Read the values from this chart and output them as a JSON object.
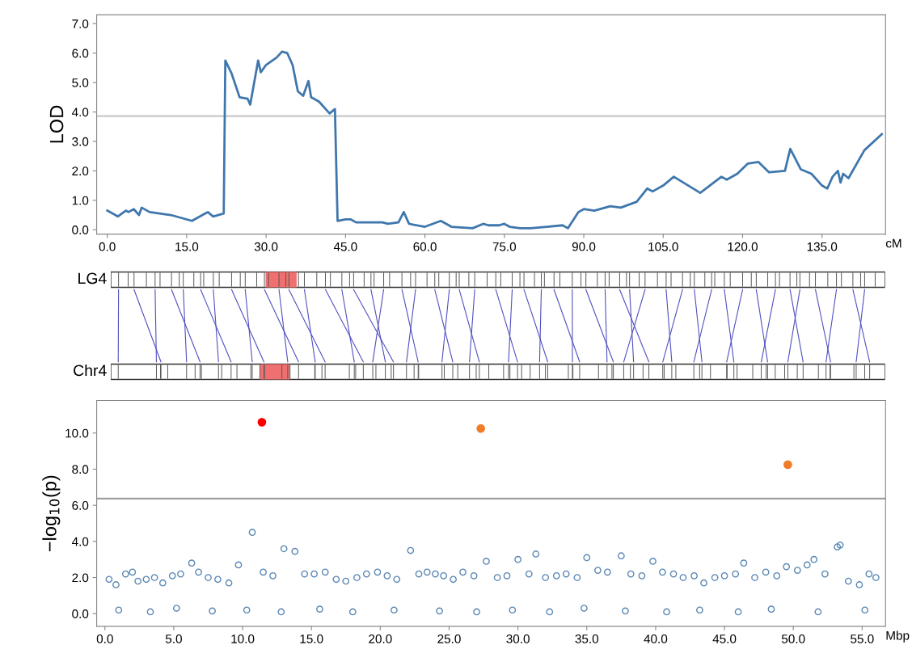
{
  "chart_data": [
    {
      "type": "line",
      "ylabel": "LOD",
      "xlabel": "cM",
      "x": [
        0,
        2,
        3.5,
        4,
        5,
        6,
        6.5,
        8,
        12,
        16,
        19,
        20,
        22,
        22.3,
        23.5,
        25,
        26.5,
        27,
        28.5,
        29,
        30,
        32,
        33,
        34,
        35,
        36,
        37,
        38,
        38.5,
        40,
        42,
        43,
        43.5,
        45,
        46,
        47,
        52,
        53,
        55,
        56,
        57,
        60,
        63,
        65,
        69,
        71,
        72,
        74,
        75,
        76,
        78,
        80,
        83,
        86,
        87,
        89,
        90,
        92,
        95,
        97,
        100,
        102,
        103,
        105,
        107,
        112,
        116,
        117,
        119,
        121,
        123,
        125,
        128,
        129,
        131,
        133,
        135,
        136,
        137,
        138,
        138.5,
        139,
        140,
        143,
        146.3
      ],
      "series": [
        {
          "color": "#3f77ad",
          "values": [
            0.65,
            0.45,
            0.65,
            0.6,
            0.7,
            0.5,
            0.75,
            0.6,
            0.5,
            0.3,
            0.6,
            0.45,
            0.55,
            5.75,
            5.3,
            4.5,
            4.45,
            4.25,
            5.75,
            5.35,
            5.6,
            5.85,
            6.05,
            6.0,
            5.6,
            4.7,
            4.55,
            5.05,
            4.5,
            4.35,
            3.95,
            4.1,
            0.3,
            0.35,
            0.35,
            0.25,
            0.25,
            0.2,
            0.25,
            0.6,
            0.2,
            0.1,
            0.3,
            0.1,
            0.05,
            0.2,
            0.15,
            0.15,
            0.2,
            0.1,
            0.05,
            0.05,
            0.1,
            0.15,
            0.05,
            0.6,
            0.7,
            0.65,
            0.8,
            0.75,
            0.95,
            1.4,
            1.3,
            1.5,
            1.8,
            1.25,
            1.8,
            1.7,
            1.9,
            2.25,
            2.3,
            1.95,
            2.0,
            2.75,
            2.05,
            1.9,
            1.5,
            1.4,
            1.8,
            2.0,
            1.6,
            1.9,
            1.75,
            2.7,
            3.25
          ]
        }
      ],
      "xlim": [
        -2,
        147
      ],
      "ylim": [
        -0.15,
        7.3
      ],
      "xticks": [
        {
          "value": 0,
          "label": "0.0"
        },
        {
          "value": 15,
          "label": "15.0"
        },
        {
          "value": 30,
          "label": "30.0"
        },
        {
          "value": 45,
          "label": "45.0"
        },
        {
          "value": 60,
          "label": "60.0"
        },
        {
          "value": 75,
          "label": "75.0"
        },
        {
          "value": 90,
          "label": "90.0"
        },
        {
          "value": 105,
          "label": "105.0"
        },
        {
          "value": 120,
          "label": "120.0"
        },
        {
          "value": 135,
          "label": "135.0"
        }
      ],
      "yticks": [
        {
          "value": 0,
          "label": "0.0"
        },
        {
          "value": 1,
          "label": "1.0"
        },
        {
          "value": 2,
          "label": "2.0"
        },
        {
          "value": 3,
          "label": "3.0"
        },
        {
          "value": 4,
          "label": "4.0"
        },
        {
          "value": 5,
          "label": "5.0"
        },
        {
          "value": 6,
          "label": "6.0"
        },
        {
          "value": 7,
          "label": "7.0"
        }
      ],
      "ref_lines": [
        {
          "axis": "y",
          "value": 3.86,
          "color": "#c8c8c8"
        }
      ],
      "grid": false,
      "legend": false,
      "marker": "none",
      "line_style": "solid"
    },
    {
      "type": "other",
      "annotations": [
        "LG4",
        "Chr4"
      ]
    },
    {
      "type": "scatter",
      "ylabel": "−log$_{10}$(p)",
      "xlabel": "Mbp",
      "series": [
        {
          "color": "#5a87b5",
          "x": [
            0.3,
            0.8,
            1.5,
            2.0,
            2.4,
            3.0,
            3.6,
            4.2,
            4.9,
            5.5,
            6.3,
            6.8,
            7.5,
            8.2,
            9.0,
            9.7,
            10.7,
            11.5,
            12.2,
            13.0,
            13.8,
            14.5,
            15.2,
            16.0,
            16.8,
            17.5,
            18.3,
            19.0,
            19.8,
            20.5,
            21.2,
            22.2,
            22.8,
            23.4,
            24.0,
            24.6,
            25.3,
            26.0,
            26.8,
            27.7,
            28.5,
            29.2,
            30.0,
            30.8,
            31.3,
            32.0,
            32.8,
            33.5,
            34.3,
            35.0,
            35.8,
            36.5,
            37.5,
            38.2,
            39.0,
            39.8,
            40.5,
            41.3,
            42.0,
            42.8,
            43.5,
            44.3,
            45.0,
            45.8,
            46.4,
            47.2,
            48.0,
            48.8,
            49.5,
            50.3,
            51.0,
            51.5,
            52.3,
            53.2,
            53.4,
            54.0,
            54.8,
            55.5,
            56.0,
            1.0,
            3.3,
            5.2,
            7.8,
            10.3,
            12.8,
            15.6,
            18.0,
            21.0,
            24.3,
            27.0,
            29.6,
            32.3,
            34.8,
            37.8,
            40.8,
            43.2,
            46.0,
            48.4,
            51.8,
            55.2
          ],
          "values": [
            1.9,
            1.6,
            2.2,
            2.3,
            1.8,
            1.9,
            2.0,
            1.7,
            2.1,
            2.2,
            2.8,
            2.3,
            2.0,
            1.9,
            1.7,
            2.7,
            4.5,
            2.3,
            2.1,
            3.6,
            3.45,
            2.2,
            2.2,
            2.3,
            1.9,
            1.8,
            2.0,
            2.2,
            2.3,
            2.1,
            1.9,
            3.5,
            2.2,
            2.3,
            2.2,
            2.1,
            1.9,
            2.3,
            2.1,
            2.9,
            2.0,
            2.1,
            3.0,
            2.2,
            3.3,
            2.0,
            2.1,
            2.2,
            2.0,
            3.1,
            2.4,
            2.3,
            3.2,
            2.2,
            2.1,
            2.9,
            2.3,
            2.2,
            2.0,
            2.1,
            1.7,
            2.0,
            2.1,
            2.2,
            2.8,
            2.0,
            2.3,
            2.1,
            2.6,
            2.4,
            2.7,
            3.0,
            2.2,
            3.7,
            3.8,
            1.8,
            1.6,
            2.2,
            2.0,
            0.2,
            0.1,
            0.3,
            0.15,
            0.2,
            0.1,
            0.25,
            0.1,
            0.2,
            0.15,
            0.1,
            0.2,
            0.1,
            0.3,
            0.15,
            0.1,
            0.2,
            0.1,
            0.25,
            0.1,
            0.2
          ]
        },
        {
          "color": "#ff0000",
          "x": [
            11.4
          ],
          "values": [
            10.6
          ]
        },
        {
          "color": "#f07d28",
          "x": [
            27.3,
            49.6
          ],
          "values": [
            10.25,
            8.25
          ]
        }
      ],
      "xlim": [
        -0.6,
        56.7
      ],
      "ylim": [
        -0.7,
        11.8
      ],
      "xticks": [
        {
          "value": 0,
          "label": "0.0"
        },
        {
          "value": 5,
          "label": "5.0"
        },
        {
          "value": 10,
          "label": "10.0"
        },
        {
          "value": 15,
          "label": "15.0"
        },
        {
          "value": 20,
          "label": "20.0"
        },
        {
          "value": 25,
          "label": "25.0"
        },
        {
          "value": 30,
          "label": "30.0"
        },
        {
          "value": 35,
          "label": "35.0"
        },
        {
          "value": 40,
          "label": "40.0"
        },
        {
          "value": 45,
          "label": "45.0"
        },
        {
          "value": 50,
          "label": "50.0"
        },
        {
          "value": 55,
          "label": "55.0"
        }
      ],
      "yticks": [
        {
          "value": 0,
          "label": "0.0"
        },
        {
          "value": 2,
          "label": "2.0"
        },
        {
          "value": 4,
          "label": "4.0"
        },
        {
          "value": 6,
          "label": "6.0"
        },
        {
          "value": 8,
          "label": "8.0"
        },
        {
          "value": 10,
          "label": "10.0"
        }
      ],
      "ref_lines": [
        {
          "axis": "y",
          "value": 6.37,
          "color": "#a0a0a0"
        }
      ],
      "grid": false,
      "legend": false,
      "marker": "circle"
    }
  ]
}
